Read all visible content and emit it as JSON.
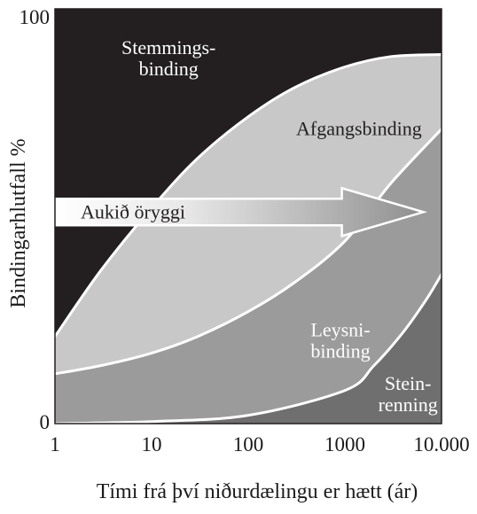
{
  "chart_data": {
    "type": "area",
    "xlabel": "Tími frá því niðurdælingu er hætt (ár)",
    "ylabel": "Bindingarhlutfall %",
    "xscale": "log",
    "xlim": [
      1,
      10000
    ],
    "ylim": [
      0,
      100
    ],
    "x_ticks": [
      "1",
      "10",
      "100",
      "1000",
      "10.000"
    ],
    "y_ticks": [
      "0",
      "100"
    ],
    "boundaries": [
      {
        "name": "upper",
        "x": [
          1,
          3,
          10,
          30,
          100,
          300,
          1000,
          3000,
          10000
        ],
        "y": [
          21,
          37,
          52,
          64,
          74,
          81,
          86,
          88.5,
          89
        ]
      },
      {
        "name": "middle",
        "x": [
          1,
          3,
          10,
          30,
          100,
          300,
          1000,
          3000,
          10000
        ],
        "y": [
          12,
          14,
          17,
          21,
          27,
          34,
          44,
          58,
          71
        ]
      },
      {
        "name": "lower",
        "x": [
          1,
          10,
          100,
          1000,
          2000,
          4000,
          7000,
          10000
        ],
        "y": [
          0,
          0.5,
          2,
          8,
          14,
          22,
          30,
          36
        ]
      }
    ],
    "regions": [
      {
        "label_lines": [
          "Stemmings-",
          "binding"
        ],
        "color": "#231f20",
        "text_color": "#ffffff",
        "label_x": 15,
        "label_y": 88
      },
      {
        "label_lines": [
          "Afgangsbinding"
        ],
        "color": "#c8c8c8",
        "text_color": "#231f20",
        "label_x": 1400,
        "label_y": 71
      },
      {
        "label_lines": [
          "Leysni-",
          "binding"
        ],
        "color": "#9b9b9b",
        "text_color": "#ffffff",
        "label_x": 900,
        "label_y": 20
      },
      {
        "label_lines": [
          "Stein-",
          "renning"
        ],
        "color": "#6f6f6f",
        "text_color": "#ffffff",
        "label_x": 4500,
        "label_y": 7
      }
    ],
    "arrow": {
      "label": "Aukið öryggi",
      "x_start": 1,
      "x_end": 6500,
      "y_center": 51
    }
  }
}
